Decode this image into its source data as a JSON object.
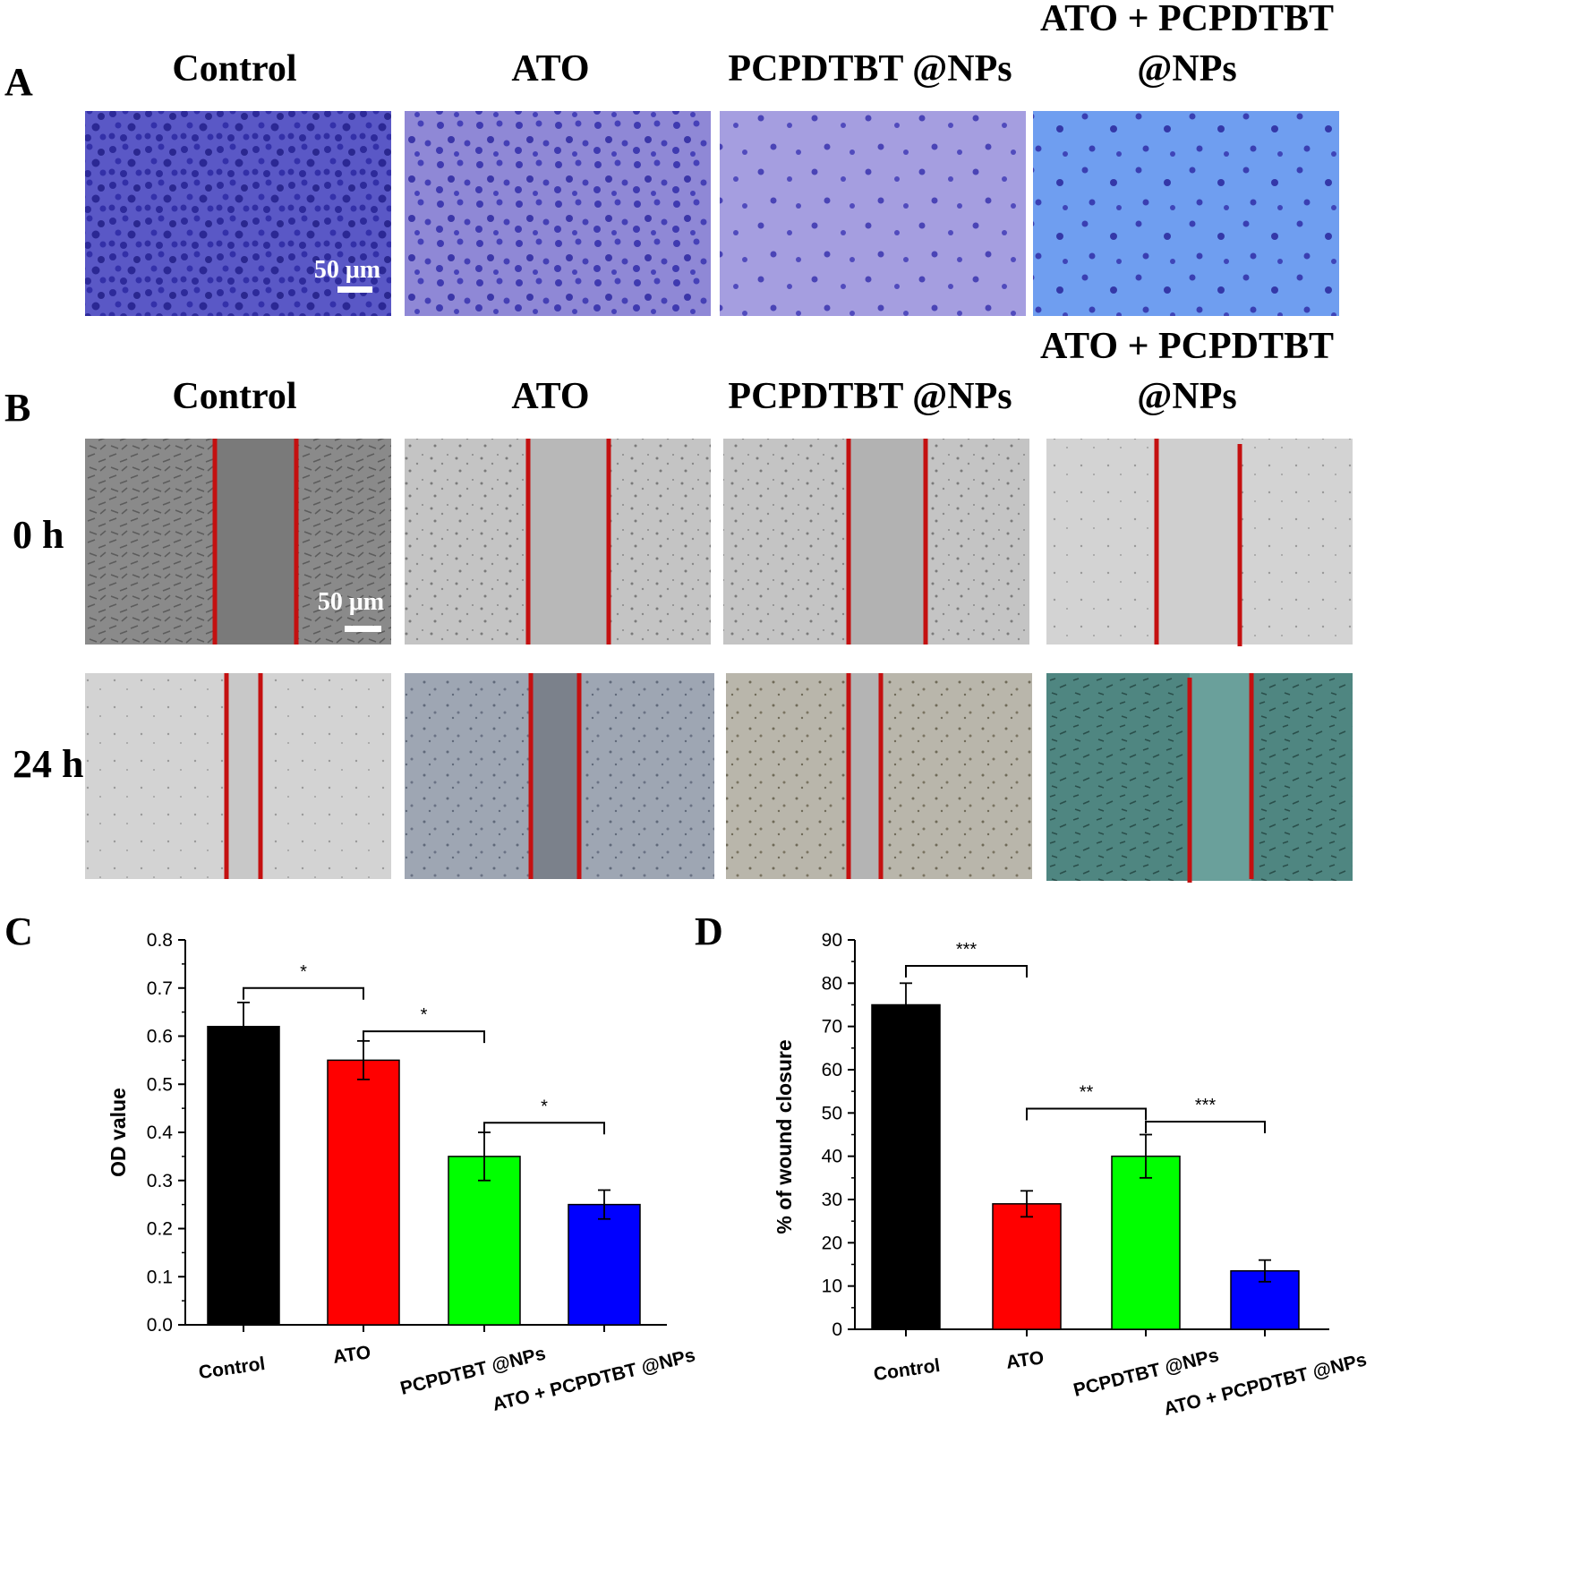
{
  "panel_a": {
    "letter": "A",
    "headers": [
      [
        "Control"
      ],
      [
        "ATO"
      ],
      [
        "PCPDTBT @NPs"
      ],
      [
        "ATO + PCPDTBT",
        "@NPs"
      ]
    ],
    "scale_bar": "50 μm"
  },
  "panel_b": {
    "letter": "B",
    "headers": [
      [
        "Control"
      ],
      [
        "ATO"
      ],
      [
        "PCPDTBT @NPs"
      ],
      [
        "ATO + PCPDTBT",
        "@NPs"
      ]
    ],
    "rows": [
      "0 h",
      "24 h"
    ],
    "scale_bar": "50 μm"
  },
  "chart_data": [
    {
      "panel": "C",
      "type": "bar",
      "categories": [
        "Control",
        "ATO",
        "PCPDTBT @NPs",
        "ATO + PCPDTBT @NPs"
      ],
      "values": [
        0.62,
        0.55,
        0.35,
        0.25
      ],
      "errors": [
        0.05,
        0.04,
        0.05,
        0.03
      ],
      "colors": [
        "#000000",
        "#ff0000",
        "#00ff00",
        "#0000ff"
      ],
      "ylabel": "OD value",
      "xlabel": "",
      "ylim": [
        0,
        0.8
      ],
      "yticks": [
        "0.0",
        "0.1",
        "0.2",
        "0.3",
        "0.4",
        "0.5",
        "0.6",
        "0.7",
        "0.8"
      ],
      "significance": [
        {
          "from": 0,
          "to": 1,
          "label": "*",
          "y": 0.7
        },
        {
          "from": 1,
          "to": 2,
          "label": "*",
          "y": 0.61
        },
        {
          "from": 2,
          "to": 3,
          "label": "*",
          "y": 0.42
        }
      ]
    },
    {
      "panel": "D",
      "type": "bar",
      "categories": [
        "Control",
        "ATO",
        "PCPDTBT @NPs",
        "ATO + PCPDTBT @NPs"
      ],
      "values": [
        75,
        29,
        40,
        13.5
      ],
      "errors": [
        5,
        3,
        5,
        2.5
      ],
      "colors": [
        "#000000",
        "#ff0000",
        "#00ff00",
        "#0000ff"
      ],
      "ylabel": "% of wound closure",
      "xlabel": "",
      "ylim": [
        0,
        90
      ],
      "yticks": [
        "0",
        "10",
        "20",
        "30",
        "40",
        "50",
        "60",
        "70",
        "80",
        "90"
      ],
      "significance": [
        {
          "from": 0,
          "to": 1,
          "label": "***",
          "y": 84
        },
        {
          "from": 1,
          "to": 2,
          "label": "**",
          "y": 51
        },
        {
          "from": 2,
          "to": 3,
          "label": "***",
          "y": 48
        }
      ]
    }
  ]
}
